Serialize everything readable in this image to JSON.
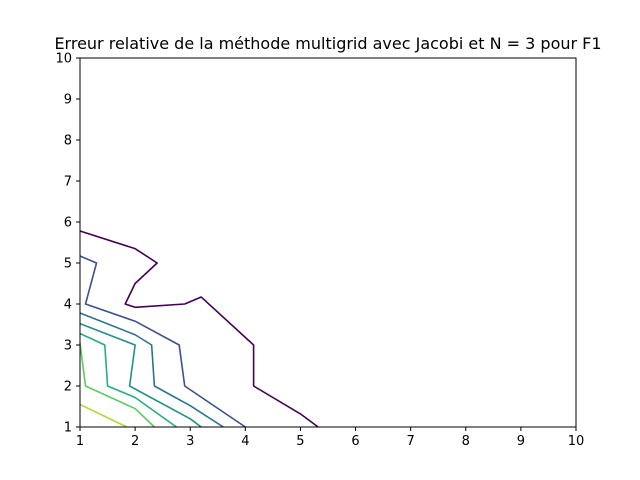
{
  "chart_data": {
    "type": "contour",
    "title": "Erreur relative de la méthode multigrid avec Jacobi et N = 3 pour F1",
    "xlabel": "",
    "ylabel": "",
    "xlim": [
      1,
      10
    ],
    "ylim": [
      1,
      10
    ],
    "xticks": [
      "1",
      "2",
      "3",
      "4",
      "5",
      "6",
      "7",
      "8",
      "9",
      "10"
    ],
    "yticks": [
      "1",
      "2",
      "3",
      "4",
      "5",
      "6",
      "7",
      "8",
      "9",
      "10"
    ],
    "grid": false,
    "series": [
      {
        "color": "#440154",
        "segments": [
          [
            [
              1.0,
              5.78
            ],
            [
              2.0,
              5.35
            ],
            [
              2.4,
              5.0
            ],
            [
              2.0,
              4.5
            ],
            [
              1.82,
              4.0
            ],
            [
              2.0,
              3.92
            ],
            [
              2.9,
              4.0
            ],
            [
              3.2,
              4.17
            ],
            [
              4.15,
              3.0
            ],
            [
              4.15,
              2.0
            ],
            [
              5.0,
              1.32
            ],
            [
              5.32,
              1.0
            ]
          ]
        ]
      },
      {
        "color": "#3b528b",
        "segments": [
          [
            [
              1.0,
              5.17
            ],
            [
              1.3,
              5.0
            ],
            [
              1.1,
              4.0
            ],
            [
              2.0,
              3.58
            ],
            [
              2.8,
              3.0
            ],
            [
              2.9,
              2.0
            ],
            [
              4.0,
              1.0
            ]
          ]
        ]
      },
      {
        "color": "#2c728e",
        "segments": [
          [
            [
              1.0,
              3.78
            ],
            [
              2.0,
              3.25
            ],
            [
              2.3,
              3.0
            ],
            [
              2.35,
              2.0
            ],
            [
              3.0,
              1.52
            ],
            [
              3.6,
              1.0
            ]
          ]
        ]
      },
      {
        "color": "#21918c",
        "segments": [
          [
            [
              1.0,
              3.52
            ],
            [
              2.0,
              3.0
            ],
            [
              1.9,
              2.0
            ],
            [
              3.0,
              1.2
            ],
            [
              3.2,
              1.0
            ]
          ]
        ]
      },
      {
        "color": "#27ad81",
        "segments": [
          [
            [
              1.0,
              3.28
            ],
            [
              1.45,
              3.0
            ],
            [
              1.5,
              2.0
            ],
            [
              2.0,
              1.72
            ],
            [
              2.75,
              1.0
            ]
          ]
        ]
      },
      {
        "color": "#5ec962",
        "segments": [
          [
            [
              1.0,
              3.05
            ],
            [
              1.1,
              2.0
            ],
            [
              2.0,
              1.45
            ],
            [
              2.35,
              1.0
            ]
          ]
        ]
      },
      {
        "color": "#aadc32",
        "segments": [
          [
            [
              1.0,
              1.55
            ],
            [
              1.85,
              1.0
            ]
          ]
        ]
      }
    ]
  }
}
